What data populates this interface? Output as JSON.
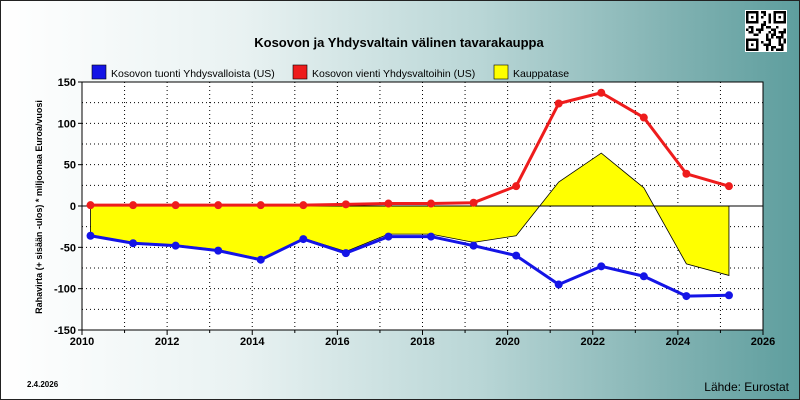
{
  "chart_data": {
    "type": "line",
    "title": "Kosovon ja Yhdysvaltain välinen tavarakauppa",
    "ylabel": "Rahavirta (+ sisään -ulos)  * miljoonaa Euroa/vuosi",
    "xlabel": "",
    "ylim": [
      -150,
      150
    ],
    "yticks": [
      150,
      100,
      50,
      0,
      -50,
      -100,
      -150
    ],
    "xlim": [
      2010,
      2026
    ],
    "xticks": [
      2010,
      2012,
      2014,
      2016,
      2018,
      2020,
      2022,
      2024,
      2026
    ],
    "grid": true,
    "legend_position": "top",
    "x": [
      2010.2,
      2011.2,
      2012.2,
      2013.2,
      2014.2,
      2015.2,
      2016.2,
      2017.2,
      2018.2,
      2019.2,
      2020.2,
      2021.2,
      2022.2,
      2023.2,
      2024.2,
      2025.2
    ],
    "series": [
      {
        "name": "Kosovon tuonti Yhdysvalloista (US)",
        "role": "import",
        "color": "#1414e6",
        "values": [
          -36,
          -45,
          -48,
          -54,
          -65,
          -40,
          -57,
          -37,
          -37,
          -48,
          -60,
          -95,
          -73,
          -85,
          -109,
          -108
        ]
      },
      {
        "name": "Kosovon vienti Yhdysvaltoihin (US)",
        "role": "export",
        "color": "#ee1c1c",
        "values": [
          1,
          1,
          1,
          1,
          1,
          1,
          2,
          3,
          3,
          4,
          24,
          124,
          137,
          107,
          39,
          24
        ]
      },
      {
        "name": "Kauppatase",
        "role": "balance",
        "color": "#ffff00",
        "values": [
          -35,
          -44,
          -47,
          -53,
          -64,
          -39,
          -55,
          -34,
          -34,
          -44,
          -36,
          29,
          64,
          22,
          -70,
          -84
        ]
      }
    ]
  },
  "footer": {
    "date": "2.4.2026",
    "source": "Lähde: Eurostat"
  },
  "qr_icon": "qr-code-icon"
}
